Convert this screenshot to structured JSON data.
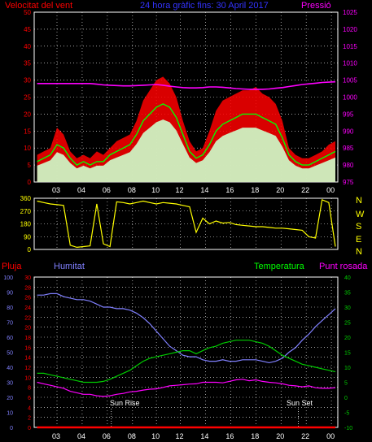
{
  "header": {
    "wind_title": "Velocitat del vent",
    "period_title": "24 hora gràfic fins:  30 April 2017",
    "pressure_title": "Pressió"
  },
  "bottom_header": {
    "rain": "Pluja",
    "humidity": "Humitat",
    "temperature": "Temperatura",
    "dewpoint": "Punt rosada"
  },
  "direction_labels": [
    "N",
    "W",
    "S",
    "E",
    "N"
  ],
  "sun_rise_label": "Sun Rise",
  "sun_set_label": "Sun Set",
  "colors": {
    "wind_gust": "#ff0000",
    "wind_avg": "#00ff00",
    "wind_base": "#ccffcc",
    "pressure": "#ff00ff",
    "direction": "#ffff00",
    "humidity": "#8080ff",
    "temperature": "#00cc00",
    "dewpoint": "#ff00ff",
    "rain": "#ff0000",
    "grid": "#ffffff"
  },
  "chart_data": [
    {
      "type": "line",
      "name": "wind-pressure",
      "x_ticks": [
        "03",
        "04",
        "06",
        "08",
        "10",
        "12",
        "14",
        "16",
        "18",
        "20",
        "22",
        "00"
      ],
      "y_left_ticks": [
        0,
        5,
        10,
        15,
        20,
        25,
        30,
        35,
        40,
        45,
        50
      ],
      "y_right_ticks": [
        975,
        980,
        985,
        990,
        995,
        1000,
        1005,
        1010,
        1015,
        1020,
        1025
      ],
      "ylim_left": [
        0,
        50
      ],
      "ylim_right": [
        975,
        1025
      ],
      "hours": [
        1.5,
        2,
        2.5,
        3,
        3.5,
        4,
        4.5,
        5,
        5.5,
        6,
        6.5,
        7,
        7.5,
        8,
        8.5,
        9,
        9.5,
        10,
        10.5,
        11,
        11.5,
        12,
        12.5,
        13,
        13.5,
        14,
        14.5,
        15,
        15.5,
        16,
        16.5,
        17,
        17.5,
        18,
        18.5,
        19,
        19.5,
        20,
        20.5,
        21,
        21.5,
        22,
        22.5,
        23,
        23.5,
        24
      ],
      "series": [
        {
          "name": "Velocitat del vent",
          "values": [
            8,
            9,
            10,
            16,
            14,
            9,
            7,
            8,
            7,
            9,
            8,
            10,
            12,
            13,
            14,
            18,
            24,
            27,
            30,
            31,
            29,
            25,
            18,
            12,
            9,
            10,
            15,
            21,
            24,
            25,
            26,
            27,
            27,
            28,
            26,
            25,
            23,
            18,
            10,
            8,
            7,
            7,
            8,
            9,
            11,
            12
          ]
        },
        {
          "name": "wind-average",
          "values": [
            6,
            7,
            8,
            11,
            10,
            7,
            5,
            6,
            5,
            6,
            6,
            8,
            9,
            10,
            11,
            14,
            18,
            20,
            22,
            23,
            22,
            19,
            14,
            9,
            7,
            8,
            11,
            15,
            17,
            18,
            19,
            20,
            20,
            20,
            19,
            18,
            17,
            13,
            8,
            6,
            5,
            5,
            6,
            7,
            8,
            9
          ]
        },
        {
          "name": "Pressió",
          "values": [
            1004,
            1004,
            1004,
            1004,
            1004,
            1004,
            1004,
            1004,
            1004,
            1003.8,
            1003.6,
            1003.5,
            1003.4,
            1003.3,
            1003.3,
            1003.4,
            1003.5,
            1003.6,
            1003.7,
            1003.5,
            1003.2,
            1003,
            1002.8,
            1002.7,
            1002.7,
            1002.8,
            1003,
            1003,
            1002.9,
            1002.7,
            1002.5,
            1002.4,
            1002.3,
            1002.3,
            1002.3,
            1002.4,
            1002.6,
            1002.8,
            1003.1,
            1003.4,
            1003.7,
            1003.9,
            1004.1,
            1004.3,
            1004.4,
            1004.5
          ]
        }
      ]
    },
    {
      "type": "line",
      "name": "wind-direction",
      "y_ticks": [
        0,
        90,
        180,
        270,
        360
      ],
      "ylim": [
        0,
        360
      ],
      "hours": [
        1.5,
        2,
        2.5,
        3,
        3.5,
        4,
        4.5,
        5,
        5.5,
        6,
        6.5,
        7,
        7.5,
        8,
        8.5,
        9,
        9.5,
        10,
        10.5,
        11,
        11.5,
        12,
        12.5,
        13,
        13.5,
        14,
        14.5,
        15,
        15.5,
        16,
        16.5,
        17,
        17.5,
        18,
        18.5,
        19,
        19.5,
        20,
        20.5,
        21,
        21.5,
        22,
        22.5,
        23,
        23.5,
        24
      ],
      "series": [
        {
          "name": "direction",
          "values": [
            340,
            330,
            320,
            315,
            310,
            30,
            15,
            20,
            25,
            320,
            40,
            20,
            335,
            330,
            320,
            330,
            340,
            330,
            320,
            330,
            325,
            320,
            310,
            300,
            120,
            220,
            180,
            200,
            185,
            190,
            175,
            170,
            165,
            160,
            160,
            155,
            150,
            150,
            145,
            140,
            135,
            90,
            80,
            350,
            330,
            20
          ]
        }
      ]
    },
    {
      "type": "line",
      "name": "humidity-temperature",
      "x_ticks": [
        "03",
        "04",
        "06",
        "08",
        "10",
        "12",
        "14",
        "16",
        "18",
        "20",
        "22",
        "00"
      ],
      "y_rain_ticks": [
        0,
        2,
        4,
        6,
        8,
        10,
        12,
        14,
        16,
        18,
        20,
        22,
        24,
        26,
        28,
        30
      ],
      "y_humidity_ticks": [
        0,
        10,
        20,
        30,
        40,
        50,
        60,
        70,
        80,
        90,
        100
      ],
      "y_temp_ticks": [
        -10,
        -5,
        0,
        5,
        10,
        15,
        20,
        25,
        30,
        35,
        40
      ],
      "ylim_rain": [
        0,
        30
      ],
      "ylim_humidity": [
        0,
        100
      ],
      "ylim_temperature": [
        -10,
        40
      ],
      "hours": [
        1.5,
        2,
        2.5,
        3,
        3.5,
        4,
        4.5,
        5,
        5.5,
        6,
        6.5,
        7,
        7.5,
        8,
        8.5,
        9,
        9.5,
        10,
        10.5,
        11,
        11.5,
        12,
        12.5,
        13,
        13.5,
        14,
        14.5,
        15,
        15.5,
        16,
        16.5,
        17,
        17.5,
        18,
        18.5,
        19,
        19.5,
        20,
        20.5,
        21,
        21.5,
        22,
        22.5,
        23,
        23.5,
        24
      ],
      "series": [
        {
          "name": "Humitat",
          "values": [
            88,
            88,
            89,
            89,
            87,
            86,
            85,
            85,
            84,
            82,
            80,
            80,
            79,
            79,
            78,
            76,
            73,
            69,
            64,
            59,
            54,
            51,
            48,
            47,
            47,
            45,
            44,
            44,
            45,
            44,
            44,
            45,
            45,
            45,
            44,
            43,
            44,
            46,
            50,
            53,
            58,
            62,
            67,
            71,
            75,
            79
          ]
        },
        {
          "name": "Temperatura",
          "values": [
            8,
            8,
            7.5,
            7,
            6.5,
            6,
            5.5,
            5,
            5,
            5,
            5.3,
            6,
            7,
            8,
            9,
            10.5,
            12,
            13,
            13.5,
            14,
            14.5,
            15,
            15.5,
            15.5,
            14.5,
            15.5,
            16.5,
            17,
            18,
            18.5,
            19,
            19,
            19,
            18.5,
            18,
            17,
            15.5,
            14,
            13,
            12,
            11,
            10.5,
            10,
            9.5,
            9,
            8.5
          ]
        },
        {
          "name": "Punt rosada",
          "values": [
            5,
            4.5,
            4,
            3.5,
            3,
            2,
            1.5,
            1,
            1,
            0.5,
            0.3,
            0.5,
            1,
            1.3,
            1.8,
            2,
            2.4,
            2.7,
            2.8,
            3.3,
            3.8,
            4,
            4.2,
            4.4,
            4.5,
            5,
            5,
            5,
            4.8,
            5.3,
            5.8,
            6,
            5.5,
            5.8,
            5.3,
            5,
            4.8,
            4.5,
            4,
            3.8,
            3.5,
            3.8,
            3.2,
            3,
            3,
            3.2
          ]
        },
        {
          "name": "Pluja",
          "values": [
            0,
            0,
            0,
            0,
            0,
            0,
            0,
            0,
            0,
            0,
            0,
            0,
            0,
            0,
            0,
            0,
            0,
            0,
            0,
            0,
            0,
            0,
            0,
            0,
            0,
            0,
            0,
            0,
            0,
            0,
            0,
            0,
            0,
            0,
            0,
            0,
            0,
            0,
            0,
            0,
            0,
            0,
            0,
            0,
            0,
            0
          ]
        }
      ]
    }
  ]
}
